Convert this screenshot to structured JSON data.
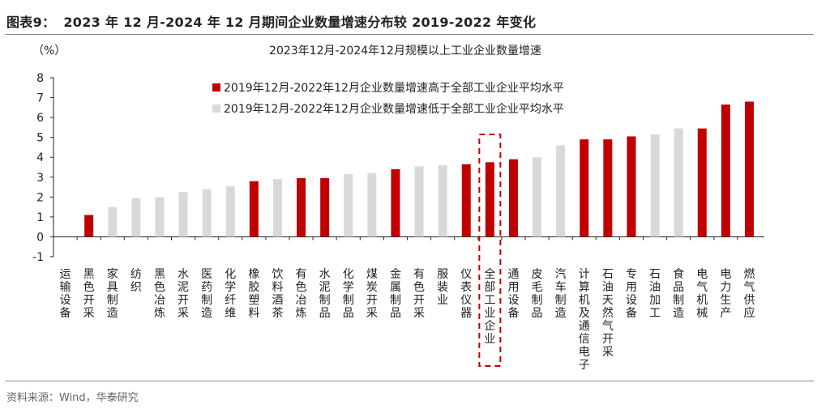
{
  "header": {
    "label": "图表9：",
    "title": "2023 年 12 月-2024 年 12 月期间企业数量增速分布较 2019-2022 年变化"
  },
  "source": "资料来源：Wind，华泰研究",
  "colors": {
    "above": "#c00000",
    "below": "#d9d9d9",
    "highlight_box": "#c00000"
  },
  "chart_data": {
    "type": "bar",
    "title": "2023年12月-2024年12月规模以上工业企业数量增速",
    "ylabel": "（%）",
    "ylim": [
      -1,
      8
    ],
    "yticks": [
      -1,
      0,
      1,
      2,
      3,
      4,
      5,
      6,
      7,
      8
    ],
    "categories": [
      "运输设备",
      "黑色开采",
      "家具制造",
      "纺织",
      "黑色冶炼",
      "水泥开采",
      "医药制造",
      "化学纤维",
      "橡胶塑料",
      "饮料酒茶",
      "有色冶炼",
      "水泥制品",
      "化学制品",
      "煤炭开采",
      "金属制品",
      "有色开采",
      "服装业",
      "仪表仪器",
      "全部工业企业",
      "通用设备",
      "皮毛制品",
      "汽车制造",
      "计算机及通信电子",
      "石油天然气开采",
      "专用设备",
      "石油加工",
      "食品制造",
      "电气机械",
      "电力生产",
      "燃气供应"
    ],
    "values": [
      0,
      1.1,
      1.5,
      1.95,
      2.0,
      2.25,
      2.4,
      2.55,
      2.8,
      2.9,
      2.95,
      2.95,
      3.15,
      3.2,
      3.4,
      3.55,
      3.6,
      3.65,
      3.75,
      3.9,
      4.0,
      4.6,
      4.9,
      4.9,
      5.05,
      5.15,
      5.45,
      5.45,
      6.65,
      6.8
    ],
    "groups": [
      "below",
      "above",
      "below",
      "below",
      "below",
      "below",
      "below",
      "below",
      "above",
      "below",
      "above",
      "above",
      "below",
      "below",
      "above",
      "below",
      "below",
      "above",
      "above",
      "above",
      "below",
      "below",
      "above",
      "above",
      "above",
      "below",
      "below",
      "above",
      "above",
      "above"
    ],
    "highlight_category": "全部工业企业",
    "legend": [
      {
        "group": "above",
        "label": "2019年12月-2022年12月企业数量增速高于全部工业企业平均水平"
      },
      {
        "group": "below",
        "label": "2019年12月-2022年12月企业数量增速低于全部工业企业平均水平"
      }
    ],
    "legend_position": "top-left",
    "grid": false
  }
}
